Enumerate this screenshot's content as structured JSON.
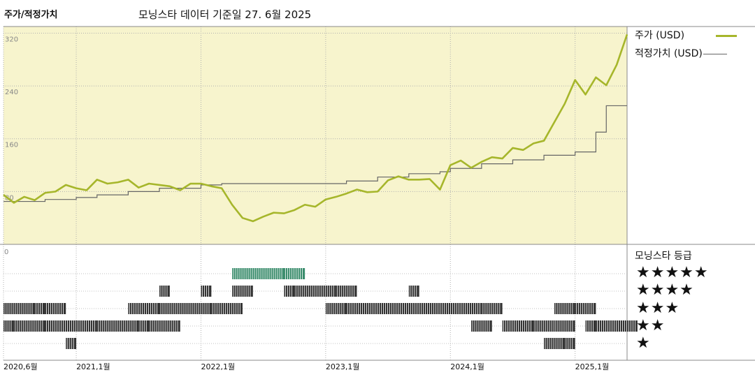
{
  "header": {
    "title": "주가/적정가치",
    "subtitle": "모닝스타 데이터 기준일 27. 6월 2025"
  },
  "legend": {
    "price_label": "주가 (USD)",
    "fair_value_label": "적정가치 (USD)",
    "rating_title": "모닝스타 등급"
  },
  "colors": {
    "price": "#a6b62b",
    "fair_value": "#666666",
    "plot_bg": "#f7f4cd",
    "rating_bar": "#333333",
    "rating_bar_5": "#3a8c6c"
  },
  "star_rows": [
    "★★★★★",
    "★★★★",
    "★★★",
    "★★",
    "★"
  ],
  "chart_data": {
    "type": "line",
    "yticks": [
      "320",
      "240",
      "160",
      "80"
    ],
    "ylim": [
      0,
      330
    ],
    "rating_ytick": "0",
    "xticks": [
      "2020,6월",
      "2021,1월",
      "2022,1월",
      "2023,1월",
      "2024,1월",
      "2025,1월"
    ],
    "xlim": [
      "2020-06",
      "2025-06"
    ],
    "series": [
      {
        "name": "주가 (USD)",
        "x": [
          "2020-06",
          "2020-07",
          "2020-08",
          "2020-09",
          "2020-10",
          "2020-11",
          "2020-12",
          "2021-01",
          "2021-02",
          "2021-03",
          "2021-04",
          "2021-05",
          "2021-06",
          "2021-07",
          "2021-08",
          "2021-09",
          "2021-10",
          "2021-11",
          "2021-12",
          "2022-01",
          "2022-02",
          "2022-03",
          "2022-04",
          "2022-05",
          "2022-06",
          "2022-07",
          "2022-08",
          "2022-09",
          "2022-10",
          "2022-11",
          "2022-12",
          "2023-01",
          "2023-02",
          "2023-03",
          "2023-04",
          "2023-05",
          "2023-06",
          "2023-07",
          "2023-08",
          "2023-09",
          "2023-10",
          "2023-11",
          "2023-12",
          "2024-01",
          "2024-02",
          "2024-03",
          "2024-04",
          "2024-05",
          "2024-06",
          "2024-07",
          "2024-08",
          "2024-09",
          "2024-10",
          "2024-11",
          "2024-12",
          "2025-01",
          "2025-02",
          "2025-03",
          "2025-04",
          "2025-05",
          "2025-06"
        ],
        "values": [
          75,
          63,
          72,
          67,
          78,
          80,
          90,
          85,
          82,
          98,
          92,
          94,
          98,
          86,
          92,
          90,
          88,
          82,
          92,
          92,
          88,
          85,
          60,
          40,
          35,
          42,
          48,
          47,
          52,
          60,
          57,
          68,
          72,
          77,
          83,
          79,
          80,
          97,
          103,
          98,
          98,
          99,
          83,
          120,
          127,
          116,
          125,
          132,
          130,
          146,
          143,
          153,
          157,
          185,
          213,
          249,
          227,
          253,
          241,
          272,
          318
        ]
      },
      {
        "name": "적정가치 (USD)",
        "x": [
          "2020-06",
          "2020-10",
          "2021-01",
          "2021-03",
          "2021-06",
          "2021-09",
          "2022-01",
          "2022-03",
          "2022-09",
          "2023-01",
          "2023-03",
          "2023-06",
          "2023-09",
          "2023-12",
          "2024-01",
          "2024-04",
          "2024-07",
          "2024-10",
          "2025-01",
          "2025-03",
          "2025-04",
          "2025-06"
        ],
        "values": [
          65,
          68,
          71,
          75,
          80,
          85,
          90,
          92,
          92,
          92,
          96,
          102,
          107,
          110,
          115,
          122,
          128,
          135,
          140,
          170,
          210,
          210
        ]
      }
    ],
    "rating_rows": [
      "★★★★★",
      "★★★★",
      "★★★",
      "★★",
      "★"
    ],
    "rating_bands": [
      {
        "stars": 5,
        "ranges": [
          [
            "2022-04",
            "2022-08"
          ],
          [
            "2022-09",
            "2022-10"
          ]
        ]
      },
      {
        "stars": 4,
        "ranges": [
          [
            "2021-09",
            "2021-09"
          ],
          [
            "2022-01",
            "2022-01"
          ],
          [
            "2022-04",
            "2022-05"
          ],
          [
            "2022-09",
            "2022-09"
          ],
          [
            "2022-10",
            "2023-01"
          ],
          [
            "2023-02",
            "2023-03"
          ],
          [
            "2023-09",
            "2023-09"
          ]
        ]
      },
      {
        "stars": 3,
        "ranges": [
          [
            "2020-06",
            "2020-08"
          ],
          [
            "2020-09",
            "2020-09"
          ],
          [
            "2020-10",
            "2020-11"
          ],
          [
            "2021-06",
            "2021-08"
          ],
          [
            "2021-09",
            "2022-01"
          ],
          [
            "2022-02",
            "2022-04"
          ],
          [
            "2023-01",
            "2023-02"
          ],
          [
            "2023-03",
            "2024-03"
          ],
          [
            "2024-04",
            "2024-05"
          ],
          [
            "2024-11",
            "2024-12"
          ],
          [
            "2025-01",
            "2025-02"
          ]
        ]
      },
      {
        "stars": 2,
        "ranges": [
          [
            "2020-06",
            "2020-06"
          ],
          [
            "2020-07",
            "2020-09"
          ],
          [
            "2020-10",
            "2021-02"
          ],
          [
            "2021-03",
            "2021-06"
          ],
          [
            "2021-07",
            "2021-07"
          ],
          [
            "2021-08",
            "2021-10"
          ],
          [
            "2024-03",
            "2024-04"
          ],
          [
            "2024-06",
            "2024-08"
          ],
          [
            "2024-09",
            "2024-11"
          ],
          [
            "2024-11",
            "2024-12"
          ],
          [
            "2025-02",
            "2025-02"
          ],
          [
            "2025-03",
            "2025-06"
          ]
        ]
      },
      {
        "stars": 1,
        "ranges": [
          [
            "2020-12",
            "2020-12"
          ],
          [
            "2024-10",
            "2024-11"
          ],
          [
            "2024-12",
            "2024-12"
          ]
        ]
      }
    ]
  }
}
